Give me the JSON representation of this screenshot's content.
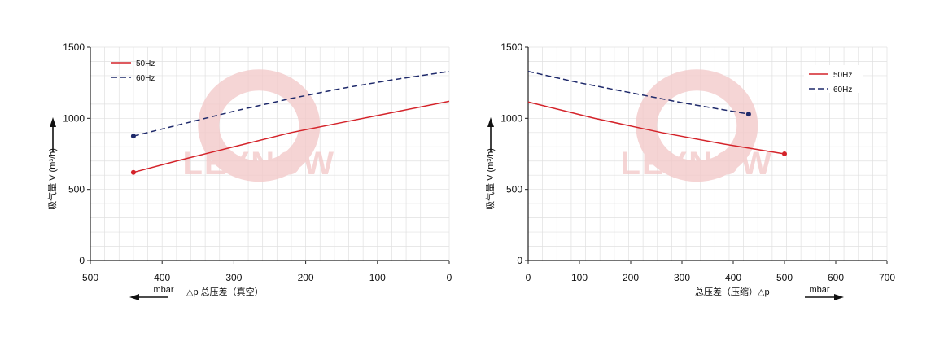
{
  "watermark": {
    "brand": "LEYNOW",
    "color": "#f3caca"
  },
  "colors": {
    "hz50": "#d4232a",
    "hz60": "#1f2a6b",
    "grid": "#e0e0e0",
    "axis": "#222222"
  },
  "chart_data": [
    {
      "type": "line",
      "title": "",
      "xlabel": "△p 总压差（真空）",
      "xunit": "mbar",
      "ylabel": "吸气量 V (m³/h)",
      "xlim": [
        500,
        0
      ],
      "ylim": [
        0,
        1500
      ],
      "x_ticks": [
        "500",
        "400",
        "300",
        "200",
        "100",
        "0"
      ],
      "y_ticks": [
        "0",
        "500",
        "1000",
        "1500"
      ],
      "grid": true,
      "legend_position": "top-left",
      "series": [
        {
          "name": "50Hz",
          "style": "solid",
          "color": "#d4232a",
          "x": [
            440,
            380,
            300,
            220,
            150,
            80,
            0
          ],
          "y": [
            620,
            700,
            800,
            900,
            970,
            1040,
            1120
          ]
        },
        {
          "name": "60Hz",
          "style": "dashed",
          "color": "#1f2a6b",
          "x": [
            440,
            380,
            300,
            220,
            150,
            80,
            0
          ],
          "y": [
            875,
            950,
            1050,
            1140,
            1210,
            1270,
            1330
          ]
        }
      ]
    },
    {
      "type": "line",
      "title": "",
      "xlabel": "总压差（压缩）△p",
      "xunit": "mbar",
      "ylabel": "吸气量 V (m³/h)",
      "xlim": [
        0,
        700
      ],
      "ylim": [
        0,
        1500
      ],
      "x_ticks": [
        "0",
        "100",
        "200",
        "300",
        "400",
        "500",
        "600",
        "700"
      ],
      "y_ticks": [
        "0",
        "500",
        "1000",
        "1500"
      ],
      "grid": true,
      "legend_position": "top-right",
      "series": [
        {
          "name": "50Hz",
          "style": "solid",
          "color": "#d4232a",
          "x": [
            0,
            130,
            260,
            380,
            500
          ],
          "y": [
            1115,
            1000,
            900,
            820,
            750
          ]
        },
        {
          "name": "60Hz",
          "style": "dashed",
          "color": "#1f2a6b",
          "x": [
            0,
            100,
            200,
            300,
            430
          ],
          "y": [
            1330,
            1250,
            1180,
            1110,
            1030
          ]
        }
      ]
    }
  ]
}
